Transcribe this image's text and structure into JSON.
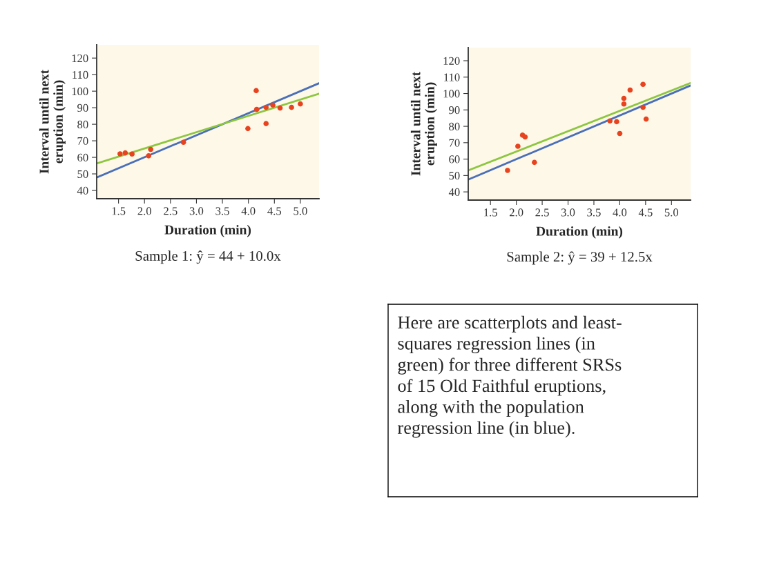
{
  "chart_data": [
    {
      "type": "scatter",
      "xlabel": "Duration (min)",
      "ylabel": "Interval until next\neruption (min)",
      "annotations": [
        "Sample 1: ŷ = 44 + 10.0x"
      ],
      "xlim": [
        1.08,
        5.36
      ],
      "ylim": [
        35,
        128
      ],
      "xticks": [
        {
          "value": 1.5,
          "label": "1.5"
        },
        {
          "value": 2,
          "label": "2.0"
        },
        {
          "value": 2.5,
          "label": "2.5"
        },
        {
          "value": 3,
          "label": "3.0"
        },
        {
          "value": 3.5,
          "label": "3.5"
        },
        {
          "value": 4,
          "label": "4.0"
        },
        {
          "value": 4.5,
          "label": "4.5"
        },
        {
          "value": 5,
          "label": "5.0"
        }
      ],
      "yticks": [
        40,
        50,
        60,
        70,
        80,
        90,
        100,
        110,
        120
      ],
      "grid": false,
      "legend": false,
      "series": [
        {
          "type": "line",
          "color": "#4a6fb8",
          "x": [
            1.08,
            5.36
          ],
          "values": [
            47.8,
            104.8
          ]
        },
        {
          "type": "line",
          "color": "#8dc63f",
          "x": [
            1.08,
            5.36
          ],
          "values": [
            56.3,
            98.5
          ]
        },
        {
          "type": "scatter",
          "marker": "circle",
          "color": "#e8431f",
          "x": [
            1.53,
            1.63,
            1.76,
            2.08,
            2.12,
            2.75,
            3.99,
            4.15,
            4.16,
            4.34,
            4.34,
            4.47,
            4.61,
            4.83,
            5.0
          ],
          "values": [
            62.1,
            62.7,
            62.0,
            60.9,
            64.8,
            69.1,
            77.4,
            100.3,
            89.0,
            90.2,
            80.4,
            91.6,
            89.8,
            90.2,
            92.3
          ]
        }
      ]
    },
    {
      "type": "scatter",
      "xlabel": "Duration (min)",
      "ylabel": "Interval until next\neruption (min)",
      "annotations": [
        "Sample 2: ŷ = 39 + 12.5x"
      ],
      "xlim": [
        1.07,
        5.37
      ],
      "ylim": [
        35,
        128
      ],
      "xticks": [
        {
          "value": 1.5,
          "label": "1.5"
        },
        {
          "value": 2,
          "label": "2.0"
        },
        {
          "value": 2.5,
          "label": "2.5"
        },
        {
          "value": 3,
          "label": "3.0"
        },
        {
          "value": 3.5,
          "label": "3.5"
        },
        {
          "value": 4,
          "label": "4.0"
        },
        {
          "value": 4.5,
          "label": "4.5"
        },
        {
          "value": 5,
          "label": "5.0"
        }
      ],
      "yticks": [
        40,
        50,
        60,
        70,
        80,
        90,
        100,
        110,
        120
      ],
      "grid": false,
      "legend": false,
      "series": [
        {
          "type": "line",
          "color": "#4a6fb8",
          "x": [
            1.07,
            5.37
          ],
          "values": [
            47.5,
            104.9
          ]
        },
        {
          "type": "line",
          "color": "#8dc63f",
          "x": [
            1.07,
            5.37
          ],
          "values": [
            53.1,
            106.4
          ]
        },
        {
          "type": "scatter",
          "marker": "circle",
          "color": "#e8431f",
          "x": [
            1.83,
            2.03,
            2.12,
            2.17,
            2.35,
            3.81,
            3.94,
            4.0,
            4.08,
            4.08,
            4.2,
            4.45,
            4.45,
            4.51
          ],
          "values": [
            53.1,
            67.8,
            74.6,
            73.5,
            58.0,
            83.3,
            82.8,
            75.6,
            97.0,
            93.6,
            102.1,
            105.6,
            91.6,
            84.4
          ]
        }
      ]
    },
    {
      "type": "other",
      "annotations": [
        "Here are scatterplots and least-\nsquares regression lines (in\ngreen) for three different SRSs\nof 15 Old Faithful eruptions,\nalong with the population\nregression line (in blue)."
      ]
    }
  ]
}
